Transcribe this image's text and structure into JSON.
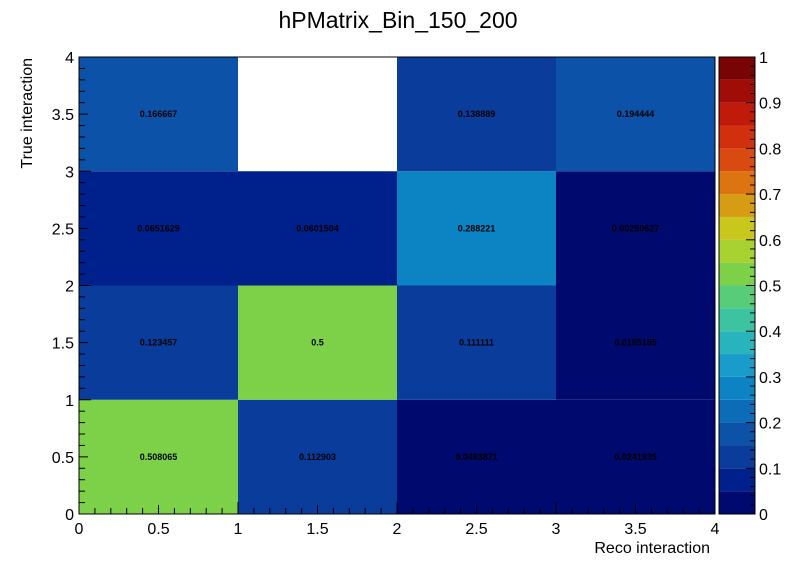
{
  "chart_data": {
    "type": "heatmap",
    "title": "hPMatrix_Bin_150_200",
    "xlabel": "Reco interaction",
    "ylabel": "True interaction",
    "xlim": [
      0,
      4
    ],
    "ylim": [
      0,
      4
    ],
    "zlim": [
      0,
      1
    ],
    "x_bin_edges": [
      0,
      1,
      2,
      3,
      4
    ],
    "y_bin_edges": [
      0,
      1,
      2,
      3,
      4
    ],
    "x_ticks": [
      "0",
      "0.5",
      "1",
      "1.5",
      "2",
      "2.5",
      "3",
      "3.5",
      "4"
    ],
    "y_ticks": [
      "0",
      "0.5",
      "1",
      "1.5",
      "2",
      "2.5",
      "3",
      "3.5",
      "4"
    ],
    "z_ticks": [
      "0",
      "0.1",
      "0.2",
      "0.3",
      "0.4",
      "0.5",
      "0.6",
      "0.7",
      "0.8",
      "0.9",
      "1"
    ],
    "cells": [
      {
        "x": 0.5,
        "y": 0.5,
        "value": 0.508065,
        "label": "0.508065"
      },
      {
        "x": 1.5,
        "y": 0.5,
        "value": 0.112903,
        "label": "0.112903"
      },
      {
        "x": 2.5,
        "y": 0.5,
        "value": 0.0483871,
        "label": "0.0483871"
      },
      {
        "x": 3.5,
        "y": 0.5,
        "value": 0.0241935,
        "label": "0.0241935"
      },
      {
        "x": 0.5,
        "y": 1.5,
        "value": 0.123457,
        "label": "0.123457"
      },
      {
        "x": 1.5,
        "y": 1.5,
        "value": 0.5,
        "label": "0.5"
      },
      {
        "x": 2.5,
        "y": 1.5,
        "value": 0.111111,
        "label": "0.111111"
      },
      {
        "x": 3.5,
        "y": 1.5,
        "value": 0.0185185,
        "label": "0.0185185"
      },
      {
        "x": 0.5,
        "y": 2.5,
        "value": 0.0651629,
        "label": "0.0651629"
      },
      {
        "x": 1.5,
        "y": 2.5,
        "value": 0.0601504,
        "label": "0.0601504"
      },
      {
        "x": 2.5,
        "y": 2.5,
        "value": 0.288221,
        "label": "0.288221"
      },
      {
        "x": 3.5,
        "y": 2.5,
        "value": 0.00250627,
        "label": "0.00250627"
      },
      {
        "x": 0.5,
        "y": 3.5,
        "value": 0.166667,
        "label": "0.166667"
      },
      {
        "x": 2.5,
        "y": 3.5,
        "value": 0.138889,
        "label": "0.138889"
      },
      {
        "x": 3.5,
        "y": 3.5,
        "value": 0.194444,
        "label": "0.194444"
      }
    ],
    "palette": [
      "#000a6e",
      "#00208c",
      "#0a3c9c",
      "#0c52a8",
      "#0d6cb8",
      "#0c84c4",
      "#1a9ccb",
      "#28b4bc",
      "#3cc4a0",
      "#58cc78",
      "#7cd148",
      "#a8d232",
      "#c9c61c",
      "#d69c14",
      "#dc7412",
      "#d84a10",
      "#d0300e",
      "#c01a0a",
      "#a00c08",
      "#780406"
    ],
    "empty_color": "#ffffff",
    "grid": false,
    "legend": "right color bar"
  }
}
